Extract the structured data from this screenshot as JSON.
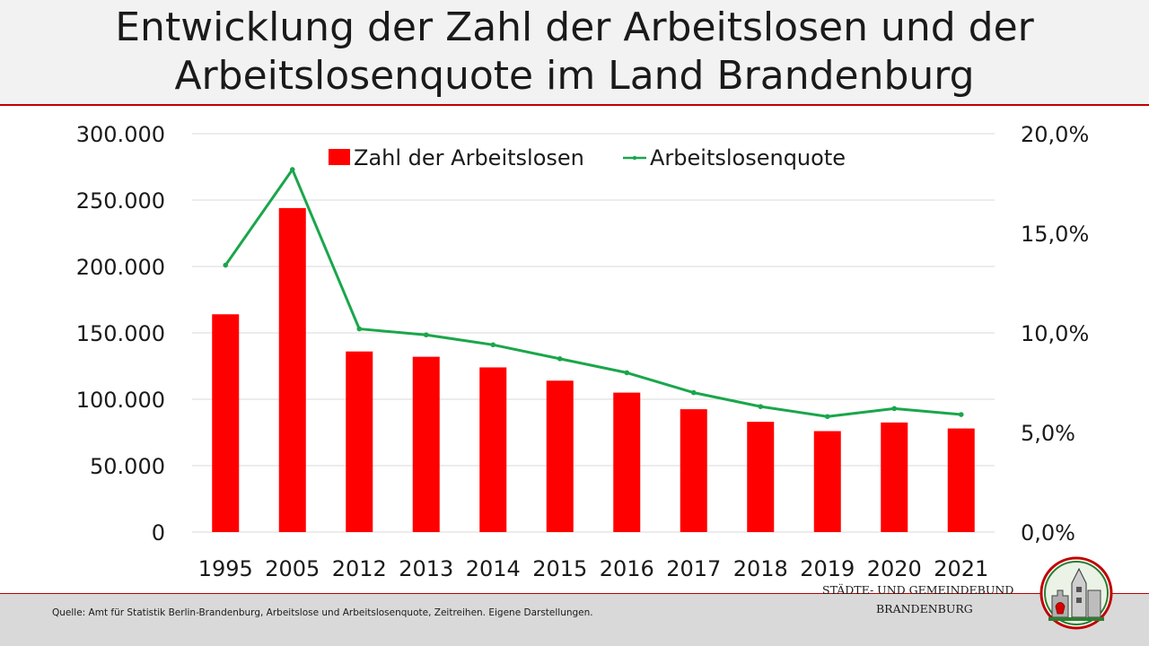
{
  "header": {
    "title_line1": "Entwicklung der Zahl der Arbeitslosen und der",
    "title_line2": "Arbeitslosenquote im Land Brandenburg"
  },
  "footer": {
    "source": "Quelle: Amt für Statistik Berlin-Brandenburg, Arbeitslose und Arbeitslosenquote, Zeitreihen. Eigene Darstellungen.",
    "org_line1": "STÄDTE-  UND GEMEINDEBUND",
    "org_line2": "BRANDENBURG"
  },
  "colors": {
    "bar": "#ff0000",
    "line": "#1aa64b",
    "accent_rule": "#c00000",
    "grid": "#d9d9d9"
  },
  "chart_data": {
    "type": "bar",
    "categories": [
      "1995",
      "2005",
      "2012",
      "2013",
      "2014",
      "2015",
      "2016",
      "2017",
      "2018",
      "2019",
      "2020",
      "2021"
    ],
    "series": [
      {
        "name": "Zahl der Arbeitslosen",
        "type": "bar",
        "axis": "left",
        "values": [
          164000,
          244000,
          136000,
          132000,
          124000,
          114000,
          105000,
          92500,
          83000,
          76000,
          82500,
          78000
        ]
      },
      {
        "name": "Arbeitslosenquote",
        "type": "line",
        "axis": "right",
        "values": [
          0.134,
          0.182,
          0.102,
          0.099,
          0.094,
          0.087,
          0.08,
          0.07,
          0.063,
          0.058,
          0.062,
          0.059
        ]
      }
    ],
    "y_left": {
      "ylim": [
        0,
        300000
      ],
      "ticks": [
        0,
        50000,
        100000,
        150000,
        200000,
        250000,
        300000
      ],
      "tick_labels": [
        "0",
        "50.000",
        "100.000",
        "150.000",
        "200.000",
        "250.000",
        "300.000"
      ]
    },
    "y_right": {
      "ylim": [
        0,
        0.2
      ],
      "ticks": [
        0,
        0.05,
        0.1,
        0.15,
        0.2
      ],
      "tick_labels": [
        "0,0%",
        "5,0%",
        "10,0%",
        "15,0%",
        "20,0%"
      ]
    },
    "grid": true,
    "legend_position": "top-center"
  }
}
